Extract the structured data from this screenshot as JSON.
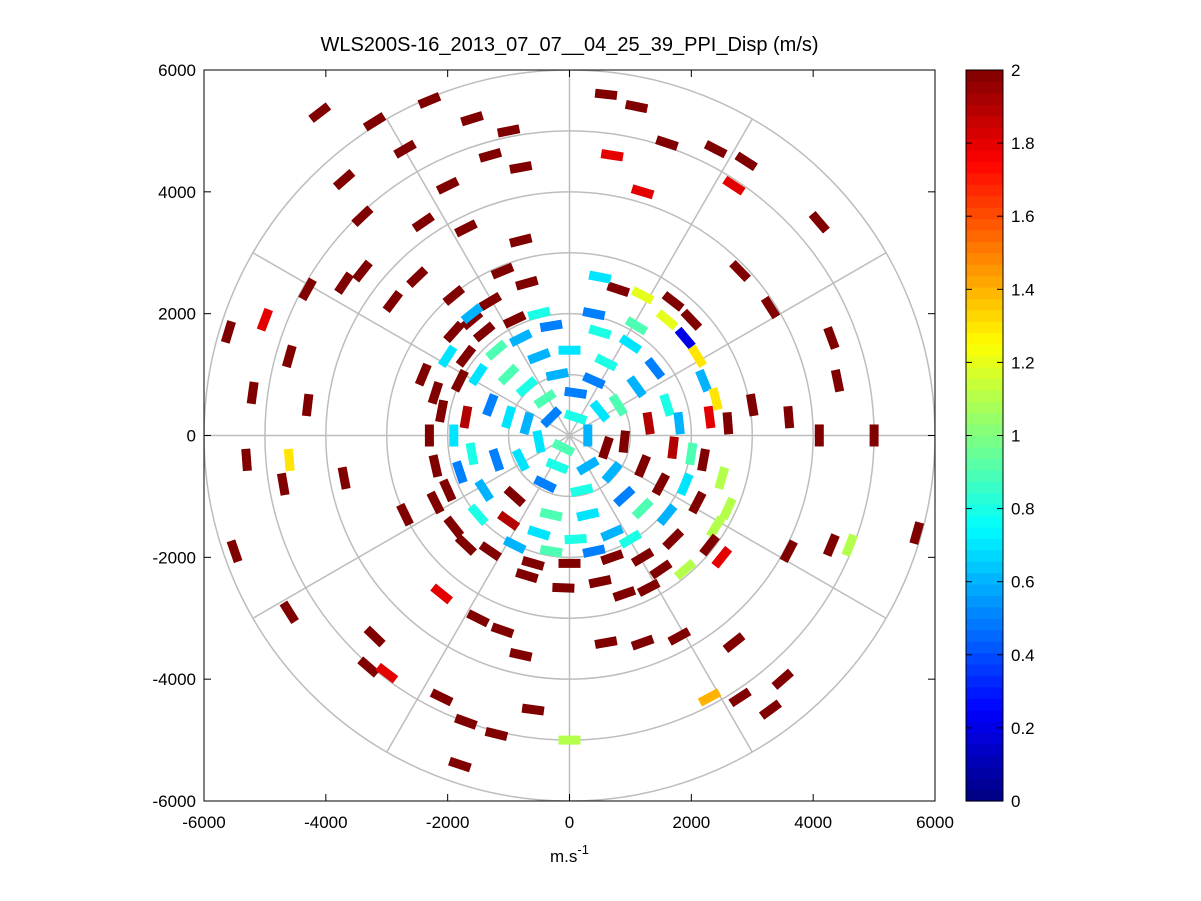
{
  "chart_data": {
    "type": "polar-scatter",
    "title": "WLS200S-16_2013_07_07__04_25_39_PPI_Disp (m/s)",
    "xlabel_base": "m.s",
    "xlabel_sup": "-1",
    "ylabel": "",
    "xlim": [
      -6000,
      6000
    ],
    "ylim": [
      -6000,
      6000
    ],
    "xticks": [
      -6000,
      -4000,
      -2000,
      0,
      2000,
      4000,
      6000
    ],
    "yticks": [
      6000,
      4000,
      2000,
      0,
      -2000,
      -4000,
      -6000
    ],
    "xtick_labels": [
      "-6000",
      "-4000",
      "-2000",
      "0",
      "2000",
      "4000",
      "6000"
    ],
    "ytick_labels": [
      "6000",
      "4000",
      "2000",
      "0",
      "-2000",
      "-4000",
      "-6000"
    ],
    "polar_grid": {
      "rings": [
        1000,
        2000,
        3000,
        4000,
        5000,
        6000
      ],
      "spokes_deg": [
        0,
        30,
        60,
        90,
        120,
        150,
        180,
        210,
        240,
        270,
        300,
        330
      ]
    },
    "colorbar": {
      "colormap": "jet",
      "clim": [
        0,
        2
      ],
      "ticks": [
        0,
        0.2,
        0.4,
        0.6,
        0.8,
        1,
        1.2,
        1.4,
        1.6,
        1.8,
        2
      ],
      "tick_labels": [
        "0",
        "0.2",
        "0.4",
        "0.6",
        "0.8",
        "1",
        "1.2",
        "1.4",
        "1.6",
        "1.8",
        "2"
      ]
    },
    "points": [
      [
        -4100,
        5300,
        2.0
      ],
      [
        -3200,
        5150,
        2.0
      ],
      [
        -2300,
        5500,
        2.0
      ],
      [
        -1600,
        5200,
        2.0
      ],
      [
        -1000,
        5000,
        2.0
      ],
      [
        600,
        5600,
        2.0
      ],
      [
        1100,
        5400,
        2.0
      ],
      [
        1600,
        4800,
        2.0
      ],
      [
        2400,
        4700,
        2.0
      ],
      [
        2900,
        4500,
        2.0
      ],
      [
        700,
        4600,
        1.8
      ],
      [
        1200,
        4000,
        1.8
      ],
      [
        2700,
        4100,
        1.8
      ],
      [
        -2700,
        4700,
        2.0
      ],
      [
        -1300,
        4600,
        2.0
      ],
      [
        -3700,
        4200,
        2.0
      ],
      [
        -2000,
        4100,
        2.0
      ],
      [
        -800,
        4400,
        2.0
      ],
      [
        -3400,
        3600,
        2.0
      ],
      [
        -2400,
        3500,
        2.0
      ],
      [
        -1700,
        3400,
        2.0
      ],
      [
        -800,
        3200,
        2.0
      ],
      [
        -4300,
        2400,
        2.0
      ],
      [
        -3700,
        2500,
        2.0
      ],
      [
        -3400,
        2700,
        2.0
      ],
      [
        -2500,
        2600,
        2.0
      ],
      [
        -2900,
        2200,
        2.0
      ],
      [
        -1900,
        2300,
        2.0
      ],
      [
        2800,
        2700,
        2.0
      ],
      [
        4100,
        3500,
        2.0
      ],
      [
        3300,
        2100,
        2.0
      ],
      [
        4300,
        1600,
        2.0
      ],
      [
        4400,
        900,
        2.0
      ],
      [
        -5600,
        1700,
        2.0
      ],
      [
        -5000,
        1900,
        1.8
      ],
      [
        -4600,
        1300,
        2.0
      ],
      [
        -5200,
        700,
        2.0
      ],
      [
        -4300,
        500,
        2.0
      ],
      [
        -5300,
        -400,
        2.0
      ],
      [
        -4700,
        -800,
        2.0
      ],
      [
        -5500,
        -1900,
        2.0
      ],
      [
        -4600,
        -2900,
        2.0
      ],
      [
        -3200,
        -3300,
        2.0
      ],
      [
        -3300,
        -3800,
        2.0
      ],
      [
        -3000,
        -3900,
        1.8
      ],
      [
        -4600,
        -400,
        1.3
      ],
      [
        -3700,
        -700,
        2.0
      ],
      [
        -2700,
        -1300,
        2.0
      ],
      [
        -2100,
        -2600,
        1.8
      ],
      [
        -1500,
        -3000,
        2.0
      ],
      [
        -1100,
        -3200,
        2.0
      ],
      [
        -800,
        -3600,
        2.0
      ],
      [
        -2100,
        -4300,
        2.0
      ],
      [
        -1700,
        -4700,
        2.0
      ],
      [
        -1200,
        -4900,
        2.0
      ],
      [
        -600,
        -4500,
        2.0
      ],
      [
        -1800,
        -5400,
        2.0
      ],
      [
        0,
        -5000,
        1.1
      ],
      [
        600,
        -3400,
        2.0
      ],
      [
        1200,
        -3400,
        2.0
      ],
      [
        1800,
        -3300,
        2.0
      ],
      [
        2700,
        -3400,
        2.0
      ],
      [
        2300,
        -4300,
        1.4
      ],
      [
        2800,
        -4300,
        2.0
      ],
      [
        3500,
        -4000,
        2.0
      ],
      [
        3300,
        -4500,
        2.0
      ],
      [
        4300,
        -1800,
        2.0
      ],
      [
        4600,
        -1800,
        1.1
      ],
      [
        5700,
        -1600,
        2.0
      ],
      [
        3600,
        -1900,
        2.0
      ],
      [
        5000,
        0,
        2.0
      ],
      [
        4100,
        0,
        2.0
      ],
      [
        3600,
        300,
        2.0
      ],
      [
        3000,
        500,
        2.0
      ],
      [
        2600,
        200,
        2.0
      ],
      [
        2500,
        -700,
        1.1
      ],
      [
        2600,
        -1200,
        1.1
      ],
      [
        2400,
        -1500,
        1.1
      ],
      [
        1900,
        -2200,
        1.1
      ],
      [
        1500,
        -2200,
        2.0
      ],
      [
        1200,
        2300,
        1.2
      ],
      [
        1600,
        1900,
        1.2
      ],
      [
        1900,
        1600,
        0.2
      ],
      [
        2100,
        1300,
        1.3
      ],
      [
        2200,
        900,
        0.6
      ],
      [
        2400,
        600,
        1.3
      ],
      [
        2300,
        300,
        1.8
      ],
      [
        2000,
        1900,
        2.0
      ],
      [
        1700,
        2200,
        2.0
      ],
      [
        800,
        2400,
        2.0
      ],
      [
        500,
        2600,
        0.7
      ],
      [
        -1300,
        2200,
        2.0
      ],
      [
        -700,
        2500,
        2.0
      ],
      [
        -1100,
        2700,
        2.0
      ],
      [
        -1900,
        1700,
        2.0
      ],
      [
        -1600,
        1900,
        2.0
      ],
      [
        -2400,
        1000,
        2.0
      ],
      [
        -2100,
        400,
        2.0
      ],
      [
        -2200,
        -500,
        2.0
      ],
      [
        -2000,
        -900,
        2.0
      ],
      [
        -1900,
        -1500,
        2.0
      ],
      [
        -1300,
        -1900,
        2.0
      ],
      [
        -700,
        -2300,
        2.0
      ],
      [
        -100,
        -2500,
        2.0
      ],
      [
        500,
        -2400,
        2.0
      ],
      [
        900,
        -2600,
        2.0
      ],
      [
        1300,
        -2500,
        2.0
      ],
      [
        2300,
        -1800,
        2.0
      ],
      [
        2500,
        -2000,
        1.8
      ],
      [
        -1700,
        300,
        1.9
      ],
      [
        -1500,
        1000,
        0.7
      ],
      [
        -1200,
        1400,
        0.9
      ],
      [
        -800,
        1600,
        0.6
      ],
      [
        -300,
        1800,
        0.5
      ],
      [
        500,
        1700,
        0.8
      ],
      [
        1000,
        1500,
        0.7
      ],
      [
        1400,
        1100,
        0.5
      ],
      [
        1600,
        500,
        0.8
      ],
      [
        1700,
        -200,
        1.9
      ],
      [
        1500,
        -800,
        2.0
      ],
      [
        1200,
        -1200,
        0.9
      ],
      [
        700,
        -1600,
        0.6
      ],
      [
        100,
        -1700,
        0.8
      ],
      [
        -500,
        -1600,
        0.7
      ],
      [
        -1000,
        -1400,
        1.9
      ],
      [
        -1400,
        -900,
        0.6
      ],
      [
        -1600,
        -300,
        0.8
      ],
      [
        -1300,
        500,
        0.5
      ],
      [
        -1000,
        1000,
        0.9
      ],
      [
        -500,
        1300,
        0.6
      ],
      [
        0,
        1400,
        0.7
      ],
      [
        600,
        1200,
        0.8
      ],
      [
        1100,
        800,
        0.6
      ],
      [
        1300,
        200,
        1.9
      ],
      [
        1200,
        -500,
        2.0
      ],
      [
        900,
        -1000,
        0.5
      ],
      [
        300,
        -1300,
        0.7
      ],
      [
        -300,
        -1300,
        0.9
      ],
      [
        -900,
        -1000,
        2.0
      ],
      [
        -1200,
        -400,
        0.5
      ],
      [
        -1000,
        300,
        0.7
      ],
      [
        -700,
        800,
        0.8
      ],
      [
        -200,
        1000,
        0.6
      ],
      [
        400,
        900,
        0.5
      ],
      [
        800,
        500,
        0.9
      ],
      [
        900,
        -100,
        2.0
      ],
      [
        700,
        -600,
        0.6
      ],
      [
        200,
        -900,
        0.8
      ],
      [
        -400,
        -800,
        0.5
      ],
      [
        -800,
        -400,
        0.7
      ],
      [
        -700,
        200,
        0.6
      ],
      [
        -400,
        600,
        0.9
      ],
      [
        100,
        700,
        0.5
      ],
      [
        500,
        400,
        0.7
      ],
      [
        600,
        -200,
        2.0
      ],
      [
        300,
        -500,
        0.6
      ],
      [
        -200,
        -500,
        0.8
      ],
      [
        -500,
        -100,
        0.7
      ],
      [
        -300,
        300,
        0.5
      ],
      [
        100,
        300,
        0.8
      ],
      [
        300,
        0,
        0.6
      ],
      [
        -100,
        -200,
        0.9
      ],
      [
        -1700,
        1300,
        2.0
      ],
      [
        -1400,
        1700,
        2.0
      ],
      [
        -900,
        1900,
        2.0
      ],
      [
        -1800,
        900,
        2.0
      ],
      [
        -1600,
        2000,
        0.6
      ],
      [
        -500,
        2000,
        0.8
      ],
      [
        400,
        2000,
        0.5
      ],
      [
        1100,
        1800,
        0.9
      ],
      [
        1900,
        -800,
        0.7
      ],
      [
        2000,
        -300,
        0.9
      ],
      [
        1800,
        200,
        0.6
      ],
      [
        -1900,
        0,
        0.7
      ],
      [
        -1800,
        -600,
        0.5
      ],
      [
        -1500,
        -1300,
        0.8
      ],
      [
        -900,
        -1800,
        0.6
      ],
      [
        -300,
        -1900,
        0.9
      ],
      [
        400,
        -1900,
        0.5
      ],
      [
        1000,
        -1700,
        0.8
      ],
      [
        1600,
        -1300,
        0.6
      ],
      [
        -2000,
        1300,
        0.7
      ],
      [
        -600,
        -2100,
        2.0
      ],
      [
        0,
        -2100,
        2.0
      ],
      [
        700,
        -2000,
        2.0
      ],
      [
        1200,
        -2000,
        2.0
      ],
      [
        1700,
        -1700,
        2.0
      ],
      [
        -1700,
        -1800,
        2.0
      ],
      [
        -2200,
        -1100,
        2.0
      ],
      [
        -2300,
        0,
        2.0
      ],
      [
        -2200,
        700,
        2.0
      ],
      [
        2100,
        -1100,
        2.0
      ],
      [
        2200,
        -400,
        2.0
      ]
    ]
  }
}
